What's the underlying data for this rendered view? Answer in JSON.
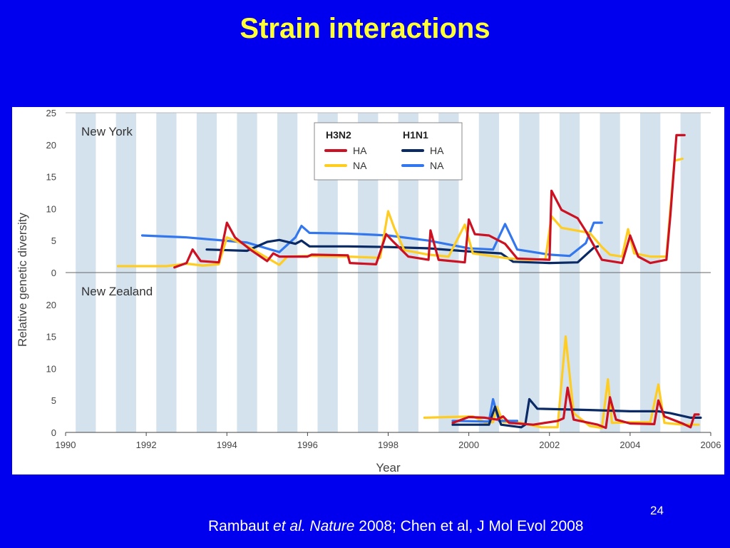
{
  "slide": {
    "title": "Strain interactions",
    "slide_number": "24",
    "citation": {
      "author": "Rambaut ",
      "etal": "et al.",
      "journal": " Nature",
      "rest": " 2008; Chen et al, J Mol Evol 2008"
    }
  },
  "colors": {
    "background": "#0000ee",
    "title": "#ffff33",
    "band": "#d4e2ee",
    "h3n2_ha": "#cc1122",
    "h3n2_na": "#ffcc22",
    "h1n1_ha": "#0a2a66",
    "h1n1_na": "#3377ee"
  },
  "chart_data": {
    "type": "line",
    "xlabel": "Year",
    "ylabel": "Relative genetic diversity",
    "xlim": [
      1990,
      2006
    ],
    "x_ticks": [
      "1990",
      "1992",
      "1994",
      "1996",
      "1998",
      "2000",
      "2002",
      "2004",
      "2006"
    ],
    "legend": {
      "placement": "top-center",
      "groups": [
        {
          "title": "H3N2",
          "entries": [
            "HA",
            "NA"
          ]
        },
        {
          "title": "H1N1",
          "entries": [
            "HA",
            "NA"
          ]
        }
      ]
    },
    "panels": [
      {
        "name": "New York",
        "ylim": [
          0,
          25
        ],
        "y_ticks": [
          "0",
          "5",
          "10",
          "15",
          "20",
          "25"
        ],
        "series": [
          {
            "group": "H1N1",
            "name": "NA",
            "color": "#3377ee",
            "points": [
              [
                1991.9,
                5.8
              ],
              [
                1993,
                5.5
              ],
              [
                1994.5,
                4.7
              ],
              [
                1995.3,
                3.2
              ],
              [
                1995.7,
                5.5
              ],
              [
                1995.85,
                7.3
              ],
              [
                1996.05,
                6.2
              ],
              [
                1997,
                6.1
              ],
              [
                1998,
                5.8
              ],
              [
                1999,
                5
              ],
              [
                2000,
                3.8
              ],
              [
                2000.6,
                3.6
              ],
              [
                2000.9,
                7.6
              ],
              [
                2001.2,
                3.6
              ],
              [
                2002,
                2.8
              ],
              [
                2002.5,
                2.6
              ],
              [
                2002.9,
                4.6
              ],
              [
                2003.1,
                7.8
              ],
              [
                2003.3,
                7.8
              ]
            ]
          },
          {
            "group": "H1N1",
            "name": "HA",
            "color": "#0a2a66",
            "points": [
              [
                1993.5,
                3.6
              ],
              [
                1994.5,
                3.4
              ],
              [
                1995,
                4.8
              ],
              [
                1995.3,
                5.1
              ],
              [
                1995.7,
                4.5
              ],
              [
                1995.85,
                5
              ],
              [
                1996.05,
                4.1
              ],
              [
                1997,
                4.1
              ],
              [
                1998,
                4
              ],
              [
                1999,
                3.8
              ],
              [
                2000,
                3.3
              ],
              [
                2000.8,
                3
              ],
              [
                2001.1,
                1.7
              ],
              [
                2002,
                1.5
              ],
              [
                2002.7,
                1.6
              ],
              [
                2003.1,
                3.9
              ],
              [
                2003.2,
                4.1
              ]
            ]
          },
          {
            "group": "H3N2",
            "name": "NA",
            "color": "#ffcc22",
            "points": [
              [
                1991.3,
                1
              ],
              [
                1992.5,
                1
              ],
              [
                1993,
                1.4
              ],
              [
                1993.4,
                1.1
              ],
              [
                1993.8,
                1.3
              ],
              [
                1994,
                5.5
              ],
              [
                1994.4,
                4.5
              ],
              [
                1995,
                2.3
              ],
              [
                1995.3,
                1.2
              ],
              [
                1995.5,
                2.5
              ],
              [
                1996,
                2.6
              ],
              [
                1997,
                2.5
              ],
              [
                1997.8,
                2.3
              ],
              [
                1998,
                9.6
              ],
              [
                1998.15,
                7
              ],
              [
                1998.4,
                3.5
              ],
              [
                1999,
                2.8
              ],
              [
                1999.5,
                2.5
              ],
              [
                1999.9,
                7.5
              ],
              [
                2000.1,
                3
              ],
              [
                2001,
                2.2
              ],
              [
                2001.5,
                2
              ],
              [
                2001.9,
                2.1
              ],
              [
                2002.05,
                8.8
              ],
              [
                2002.3,
                7
              ],
              [
                2003,
                6.2
              ],
              [
                2003.3,
                4
              ],
              [
                2003.5,
                2.8
              ],
              [
                2003.8,
                2.5
              ],
              [
                2003.95,
                6.8
              ],
              [
                2004.1,
                3
              ],
              [
                2004.5,
                2.5
              ],
              [
                2004.9,
                2.5
              ],
              [
                2005.1,
                17.5
              ],
              [
                2005.3,
                17.8
              ]
            ]
          },
          {
            "group": "H3N2",
            "name": "HA",
            "color": "#cc1122",
            "points": [
              [
                1992.7,
                0.8
              ],
              [
                1993,
                1.5
              ],
              [
                1993.15,
                3.6
              ],
              [
                1993.35,
                1.8
              ],
              [
                1993.8,
                1.6
              ],
              [
                1994,
                7.8
              ],
              [
                1994.2,
                5.5
              ],
              [
                1994.6,
                3.5
              ],
              [
                1995,
                1.8
              ],
              [
                1995.15,
                3
              ],
              [
                1995.3,
                2.5
              ],
              [
                1996,
                2.5
              ],
              [
                1996.1,
                2.8
              ],
              [
                1997,
                2.7
              ],
              [
                1997.05,
                1.5
              ],
              [
                1997.7,
                1.3
              ],
              [
                1997.95,
                6
              ],
              [
                1998.1,
                5
              ],
              [
                1998.5,
                2.5
              ],
              [
                1999,
                2
              ],
              [
                1999.05,
                6.6
              ],
              [
                1999.25,
                2
              ],
              [
                1999.9,
                1.6
              ],
              [
                2000,
                8.3
              ],
              [
                2000.15,
                6
              ],
              [
                2000.5,
                5.8
              ],
              [
                2000.9,
                4.5
              ],
              [
                2001.2,
                2.2
              ],
              [
                2002,
                2
              ],
              [
                2002.05,
                12.8
              ],
              [
                2002.3,
                9.8
              ],
              [
                2002.7,
                8.5
              ],
              [
                2002.9,
                6.5
              ],
              [
                2003.3,
                2
              ],
              [
                2003.8,
                1.5
              ],
              [
                2004,
                5.8
              ],
              [
                2004.2,
                2.5
              ],
              [
                2004.5,
                1.5
              ],
              [
                2004.9,
                2
              ],
              [
                2005,
                9
              ],
              [
                2005.15,
                21.5
              ],
              [
                2005.35,
                21.5
              ]
            ]
          }
        ]
      },
      {
        "name": "New Zealand",
        "ylim": [
          0,
          25
        ],
        "y_ticks": [
          "0",
          "5",
          "10",
          "15",
          "20"
        ],
        "series": [
          {
            "group": "H3N2",
            "name": "NA",
            "color": "#ffcc22",
            "points": [
              [
                1998.9,
                2.3
              ],
              [
                1999.5,
                2.4
              ],
              [
                2000.1,
                2.5
              ],
              [
                2000.4,
                1.6
              ],
              [
                2000.6,
                1.6
              ],
              [
                2000.7,
                4
              ],
              [
                2000.85,
                1.6
              ],
              [
                2001.2,
                1.6
              ],
              [
                2001.8,
                0.8
              ],
              [
                2002.2,
                0.8
              ],
              [
                2002.4,
                15
              ],
              [
                2002.6,
                3
              ],
              [
                2003,
                1
              ],
              [
                2003.3,
                0.7
              ],
              [
                2003.45,
                8.3
              ],
              [
                2003.55,
                1.5
              ],
              [
                2004,
                1.6
              ],
              [
                2004.5,
                1.6
              ],
              [
                2004.7,
                7.5
              ],
              [
                2004.85,
                1.5
              ],
              [
                2005.3,
                1.2
              ],
              [
                2005.7,
                1.2
              ]
            ]
          },
          {
            "group": "H1N1",
            "name": "NA",
            "color": "#3377ee",
            "points": [
              [
                1999.6,
                1.8
              ],
              [
                2000.5,
                1.7
              ],
              [
                2000.6,
                5.2
              ],
              [
                2000.75,
                1.8
              ],
              [
                2001.2,
                1.8
              ]
            ]
          },
          {
            "group": "H1N1",
            "name": "HA",
            "color": "#0a2a66",
            "points": [
              [
                1999.6,
                1.2
              ],
              [
                2000.5,
                1.2
              ],
              [
                2000.65,
                4
              ],
              [
                2000.8,
                1.2
              ],
              [
                2001.3,
                0.8
              ],
              [
                2001.4,
                1.2
              ],
              [
                2001.5,
                5.2
              ],
              [
                2001.7,
                3.7
              ],
              [
                2003,
                3.5
              ],
              [
                2004,
                3.3
              ],
              [
                2004.7,
                3.3
              ],
              [
                2005,
                3
              ],
              [
                2005.5,
                2.3
              ],
              [
                2005.75,
                2.3
              ]
            ]
          },
          {
            "group": "H3N2",
            "name": "HA",
            "color": "#cc1122",
            "points": [
              [
                1999.6,
                1.5
              ],
              [
                2000,
                2.4
              ],
              [
                2000.4,
                2.3
              ],
              [
                2000.7,
                2
              ],
              [
                2000.85,
                2.5
              ],
              [
                2001,
                1.5
              ],
              [
                2001.6,
                1.2
              ],
              [
                2002.2,
                1.8
              ],
              [
                2002.35,
                2.2
              ],
              [
                2002.45,
                7
              ],
              [
                2002.6,
                2
              ],
              [
                2003.2,
                1.2
              ],
              [
                2003.4,
                0.7
              ],
              [
                2003.5,
                5.5
              ],
              [
                2003.65,
                2
              ],
              [
                2004,
                1.4
              ],
              [
                2004.6,
                1.3
              ],
              [
                2004.7,
                5
              ],
              [
                2004.85,
                2.5
              ],
              [
                2005.3,
                1.4
              ],
              [
                2005.5,
                0.8
              ],
              [
                2005.6,
                2.8
              ],
              [
                2005.7,
                2.8
              ]
            ]
          }
        ]
      }
    ]
  }
}
